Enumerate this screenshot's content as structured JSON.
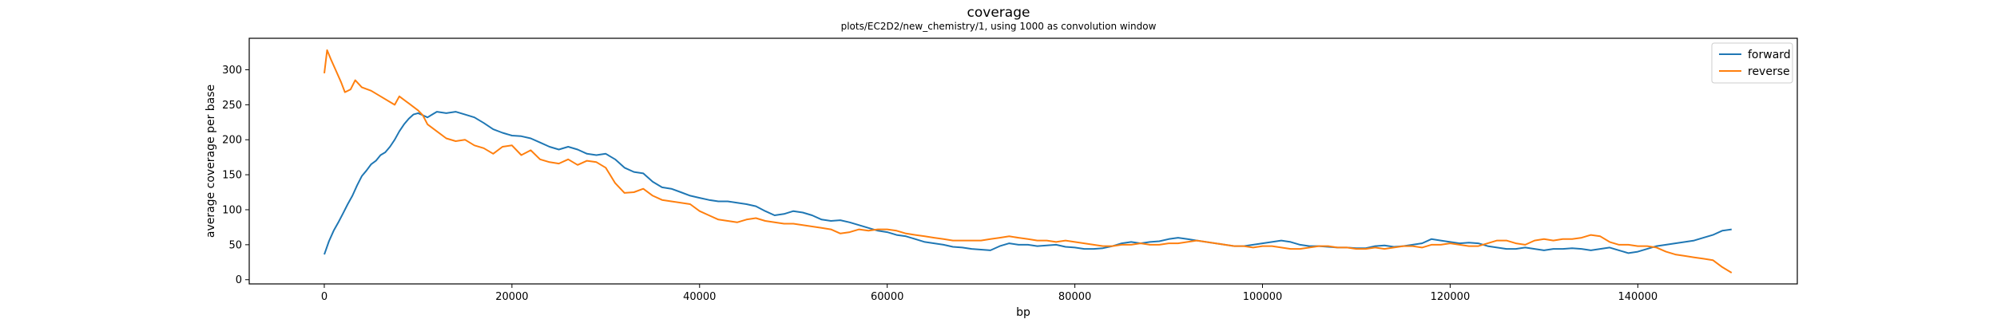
{
  "chart_data": {
    "type": "line",
    "title": "coverage",
    "subtitle": "plots/EC2D2/new_chemistry/1, using 1000 as convolution window",
    "xlabel": "bp",
    "ylabel": "average coverage per base",
    "xlim": [
      -8000,
      157000
    ],
    "ylim": [
      -6,
      345
    ],
    "xticks": [
      0,
      20000,
      40000,
      60000,
      80000,
      100000,
      120000,
      140000
    ],
    "yticks": [
      0,
      50,
      100,
      150,
      200,
      250,
      300
    ],
    "grid": false,
    "legend_position": "top-right",
    "series": [
      {
        "name": "forward",
        "color": "#1f77b4",
        "points": [
          [
            0,
            36
          ],
          [
            500,
            55
          ],
          [
            1000,
            70
          ],
          [
            1500,
            82
          ],
          [
            2000,
            95
          ],
          [
            2500,
            108
          ],
          [
            3000,
            120
          ],
          [
            3500,
            135
          ],
          [
            4000,
            148
          ],
          [
            4500,
            156
          ],
          [
            5000,
            165
          ],
          [
            5500,
            170
          ],
          [
            6000,
            178
          ],
          [
            6500,
            182
          ],
          [
            7000,
            190
          ],
          [
            7500,
            200
          ],
          [
            8000,
            212
          ],
          [
            8500,
            222
          ],
          [
            9000,
            230
          ],
          [
            9500,
            236
          ],
          [
            10000,
            238
          ],
          [
            10500,
            235
          ],
          [
            11000,
            232
          ],
          [
            11500,
            236
          ],
          [
            12000,
            240
          ],
          [
            13000,
            238
          ],
          [
            14000,
            240
          ],
          [
            15000,
            236
          ],
          [
            16000,
            232
          ],
          [
            17000,
            224
          ],
          [
            18000,
            215
          ],
          [
            19000,
            210
          ],
          [
            20000,
            206
          ],
          [
            21000,
            205
          ],
          [
            22000,
            202
          ],
          [
            23000,
            196
          ],
          [
            24000,
            190
          ],
          [
            25000,
            186
          ],
          [
            26000,
            190
          ],
          [
            27000,
            186
          ],
          [
            28000,
            180
          ],
          [
            29000,
            178
          ],
          [
            30000,
            180
          ],
          [
            31000,
            172
          ],
          [
            32000,
            160
          ],
          [
            33000,
            154
          ],
          [
            34000,
            152
          ],
          [
            35000,
            140
          ],
          [
            36000,
            132
          ],
          [
            37000,
            130
          ],
          [
            38000,
            125
          ],
          [
            39000,
            120
          ],
          [
            40000,
            117
          ],
          [
            41000,
            114
          ],
          [
            42000,
            112
          ],
          [
            43000,
            112
          ],
          [
            44000,
            110
          ],
          [
            45000,
            108
          ],
          [
            46000,
            105
          ],
          [
            47000,
            98
          ],
          [
            48000,
            92
          ],
          [
            49000,
            94
          ],
          [
            50000,
            98
          ],
          [
            51000,
            96
          ],
          [
            52000,
            92
          ],
          [
            53000,
            86
          ],
          [
            54000,
            84
          ],
          [
            55000,
            85
          ],
          [
            56000,
            82
          ],
          [
            57000,
            78
          ],
          [
            58000,
            74
          ],
          [
            59000,
            70
          ],
          [
            60000,
            68
          ],
          [
            61000,
            64
          ],
          [
            62000,
            62
          ],
          [
            63000,
            58
          ],
          [
            64000,
            54
          ],
          [
            65000,
            52
          ],
          [
            66000,
            50
          ],
          [
            67000,
            47
          ],
          [
            68000,
            46
          ],
          [
            69000,
            44
          ],
          [
            70000,
            43
          ],
          [
            71000,
            42
          ],
          [
            72000,
            48
          ],
          [
            73000,
            52
          ],
          [
            74000,
            50
          ],
          [
            75000,
            50
          ],
          [
            76000,
            48
          ],
          [
            77000,
            49
          ],
          [
            78000,
            50
          ],
          [
            79000,
            47
          ],
          [
            80000,
            46
          ],
          [
            81000,
            44
          ],
          [
            82000,
            44
          ],
          [
            83000,
            45
          ],
          [
            84000,
            48
          ],
          [
            85000,
            52
          ],
          [
            86000,
            54
          ],
          [
            87000,
            52
          ],
          [
            88000,
            54
          ],
          [
            89000,
            55
          ],
          [
            90000,
            58
          ],
          [
            91000,
            60
          ],
          [
            92000,
            58
          ],
          [
            93000,
            56
          ],
          [
            94000,
            54
          ],
          [
            95000,
            52
          ],
          [
            96000,
            50
          ],
          [
            97000,
            48
          ],
          [
            98000,
            48
          ],
          [
            99000,
            50
          ],
          [
            100000,
            52
          ],
          [
            101000,
            54
          ],
          [
            102000,
            56
          ],
          [
            103000,
            54
          ],
          [
            104000,
            50
          ],
          [
            105000,
            48
          ],
          [
            106000,
            48
          ],
          [
            107000,
            47
          ],
          [
            108000,
            46
          ],
          [
            109000,
            46
          ],
          [
            110000,
            45
          ],
          [
            111000,
            45
          ],
          [
            112000,
            48
          ],
          [
            113000,
            49
          ],
          [
            114000,
            47
          ],
          [
            115000,
            48
          ],
          [
            116000,
            50
          ],
          [
            117000,
            52
          ],
          [
            118000,
            58
          ],
          [
            119000,
            56
          ],
          [
            120000,
            54
          ],
          [
            121000,
            52
          ],
          [
            122000,
            53
          ],
          [
            123000,
            52
          ],
          [
            124000,
            48
          ],
          [
            125000,
            46
          ],
          [
            126000,
            44
          ],
          [
            127000,
            44
          ],
          [
            128000,
            46
          ],
          [
            129000,
            44
          ],
          [
            130000,
            42
          ],
          [
            131000,
            44
          ],
          [
            132000,
            44
          ],
          [
            133000,
            45
          ],
          [
            134000,
            44
          ],
          [
            135000,
            42
          ],
          [
            136000,
            44
          ],
          [
            137000,
            46
          ],
          [
            138000,
            42
          ],
          [
            139000,
            38
          ],
          [
            140000,
            40
          ],
          [
            141000,
            44
          ],
          [
            142000,
            48
          ],
          [
            143000,
            50
          ],
          [
            144000,
            52
          ],
          [
            145000,
            54
          ],
          [
            146000,
            56
          ],
          [
            147000,
            60
          ],
          [
            148000,
            64
          ],
          [
            149000,
            70
          ],
          [
            150000,
            72
          ]
        ]
      },
      {
        "name": "reverse",
        "color": "#ff7f0e",
        "points": [
          [
            0,
            295
          ],
          [
            300,
            328
          ],
          [
            700,
            315
          ],
          [
            1200,
            300
          ],
          [
            1800,
            282
          ],
          [
            2200,
            268
          ],
          [
            2800,
            272
          ],
          [
            3300,
            285
          ],
          [
            4000,
            275
          ],
          [
            5000,
            270
          ],
          [
            6000,
            262
          ],
          [
            7000,
            254
          ],
          [
            7500,
            250
          ],
          [
            8000,
            262
          ],
          [
            9000,
            252
          ],
          [
            10000,
            242
          ],
          [
            10500,
            235
          ],
          [
            11000,
            222
          ],
          [
            12000,
            212
          ],
          [
            13000,
            202
          ],
          [
            14000,
            198
          ],
          [
            15000,
            200
          ],
          [
            16000,
            192
          ],
          [
            17000,
            188
          ],
          [
            18000,
            180
          ],
          [
            19000,
            190
          ],
          [
            20000,
            192
          ],
          [
            21000,
            178
          ],
          [
            22000,
            185
          ],
          [
            23000,
            172
          ],
          [
            24000,
            168
          ],
          [
            25000,
            166
          ],
          [
            26000,
            172
          ],
          [
            27000,
            164
          ],
          [
            28000,
            170
          ],
          [
            29000,
            168
          ],
          [
            30000,
            160
          ],
          [
            31000,
            138
          ],
          [
            32000,
            124
          ],
          [
            33000,
            125
          ],
          [
            34000,
            130
          ],
          [
            35000,
            120
          ],
          [
            36000,
            114
          ],
          [
            37000,
            112
          ],
          [
            38000,
            110
          ],
          [
            39000,
            108
          ],
          [
            40000,
            98
          ],
          [
            41000,
            92
          ],
          [
            42000,
            86
          ],
          [
            43000,
            84
          ],
          [
            44000,
            82
          ],
          [
            45000,
            86
          ],
          [
            46000,
            88
          ],
          [
            47000,
            84
          ],
          [
            48000,
            82
          ],
          [
            49000,
            80
          ],
          [
            50000,
            80
          ],
          [
            51000,
            78
          ],
          [
            52000,
            76
          ],
          [
            53000,
            74
          ],
          [
            54000,
            72
          ],
          [
            55000,
            66
          ],
          [
            56000,
            68
          ],
          [
            57000,
            72
          ],
          [
            58000,
            70
          ],
          [
            59000,
            72
          ],
          [
            60000,
            72
          ],
          [
            61000,
            70
          ],
          [
            62000,
            66
          ],
          [
            63000,
            64
          ],
          [
            64000,
            62
          ],
          [
            65000,
            60
          ],
          [
            66000,
            58
          ],
          [
            67000,
            56
          ],
          [
            68000,
            56
          ],
          [
            69000,
            56
          ],
          [
            70000,
            56
          ],
          [
            71000,
            58
          ],
          [
            72000,
            60
          ],
          [
            73000,
            62
          ],
          [
            74000,
            60
          ],
          [
            75000,
            58
          ],
          [
            76000,
            56
          ],
          [
            77000,
            56
          ],
          [
            78000,
            54
          ],
          [
            79000,
            56
          ],
          [
            80000,
            54
          ],
          [
            81000,
            52
          ],
          [
            82000,
            50
          ],
          [
            83000,
            48
          ],
          [
            84000,
            48
          ],
          [
            85000,
            50
          ],
          [
            86000,
            50
          ],
          [
            87000,
            52
          ],
          [
            88000,
            50
          ],
          [
            89000,
            50
          ],
          [
            90000,
            52
          ],
          [
            91000,
            52
          ],
          [
            92000,
            54
          ],
          [
            93000,
            56
          ],
          [
            94000,
            54
          ],
          [
            95000,
            52
          ],
          [
            96000,
            50
          ],
          [
            97000,
            48
          ],
          [
            98000,
            48
          ],
          [
            99000,
            46
          ],
          [
            100000,
            48
          ],
          [
            101000,
            48
          ],
          [
            102000,
            46
          ],
          [
            103000,
            44
          ],
          [
            104000,
            44
          ],
          [
            105000,
            46
          ],
          [
            106000,
            48
          ],
          [
            107000,
            48
          ],
          [
            108000,
            46
          ],
          [
            109000,
            46
          ],
          [
            110000,
            44
          ],
          [
            111000,
            44
          ],
          [
            112000,
            46
          ],
          [
            113000,
            44
          ],
          [
            114000,
            46
          ],
          [
            115000,
            48
          ],
          [
            116000,
            48
          ],
          [
            117000,
            46
          ],
          [
            118000,
            50
          ],
          [
            119000,
            50
          ],
          [
            120000,
            52
          ],
          [
            121000,
            50
          ],
          [
            122000,
            48
          ],
          [
            123000,
            48
          ],
          [
            124000,
            52
          ],
          [
            125000,
            56
          ],
          [
            126000,
            56
          ],
          [
            127000,
            52
          ],
          [
            128000,
            50
          ],
          [
            129000,
            56
          ],
          [
            130000,
            58
          ],
          [
            131000,
            56
          ],
          [
            132000,
            58
          ],
          [
            133000,
            58
          ],
          [
            134000,
            60
          ],
          [
            135000,
            64
          ],
          [
            136000,
            62
          ],
          [
            137000,
            54
          ],
          [
            138000,
            50
          ],
          [
            139000,
            50
          ],
          [
            140000,
            48
          ],
          [
            141000,
            48
          ],
          [
            142000,
            46
          ],
          [
            143000,
            40
          ],
          [
            144000,
            36
          ],
          [
            145000,
            34
          ],
          [
            146000,
            32
          ],
          [
            147000,
            30
          ],
          [
            148000,
            28
          ],
          [
            149000,
            18
          ],
          [
            150000,
            10
          ]
        ]
      }
    ]
  }
}
